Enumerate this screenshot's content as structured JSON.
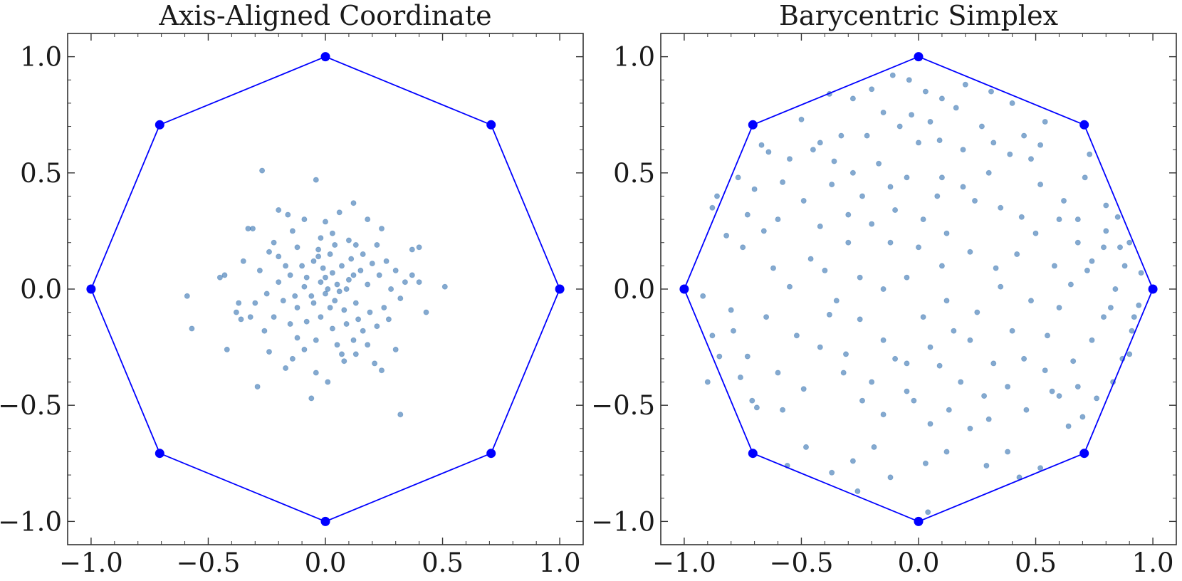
{
  "chart_data": [
    {
      "type": "scatter",
      "title": "Axis-Aligned Coordinate",
      "xlabel": "",
      "ylabel": "",
      "xlim": [
        -1.1,
        1.1
      ],
      "ylim": [
        -1.1,
        1.1
      ],
      "xticks": [
        -1.0,
        -0.5,
        0.0,
        0.5,
        1.0
      ],
      "yticks": [
        -1.0,
        -0.5,
        0.0,
        0.5,
        1.0
      ],
      "xtick_labels": [
        "−1.0",
        "−0.5",
        "0.0",
        "0.5",
        "1.0"
      ],
      "ytick_labels": [
        "−1.0",
        "−0.5",
        "0.0",
        "0.5",
        "1.0"
      ],
      "grid": false,
      "point_color": "#1f63a8",
      "point_opacity": 0.55,
      "polygon": {
        "color": "#0000ff",
        "vertices": [
          [
            1.0,
            0.0
          ],
          [
            0.707,
            0.707
          ],
          [
            0.0,
            1.0
          ],
          [
            -0.707,
            0.707
          ],
          [
            -1.0,
            0.0
          ],
          [
            -0.707,
            -0.707
          ],
          [
            0.0,
            -1.0
          ],
          [
            0.707,
            -0.707
          ]
        ]
      },
      "points": [
        [
          -0.27,
          0.51
        ],
        [
          -0.04,
          0.47
        ],
        [
          0.12,
          0.37
        ],
        [
          -0.2,
          0.34
        ],
        [
          -0.16,
          0.32
        ],
        [
          0.06,
          0.33
        ],
        [
          0.18,
          0.3
        ],
        [
          -0.09,
          0.3
        ],
        [
          0.0,
          0.29
        ],
        [
          -0.31,
          0.26
        ],
        [
          -0.33,
          0.26
        ],
        [
          0.24,
          0.26
        ],
        [
          -0.14,
          0.25
        ],
        [
          0.03,
          0.24
        ],
        [
          -0.02,
          0.22
        ],
        [
          0.1,
          0.21
        ],
        [
          -0.22,
          0.2
        ],
        [
          0.13,
          0.19
        ],
        [
          0.22,
          0.19
        ],
        [
          0.37,
          0.17
        ],
        [
          0.4,
          0.18
        ],
        [
          -0.35,
          0.12
        ],
        [
          -0.43,
          0.06
        ],
        [
          -0.59,
          -0.03
        ],
        [
          -0.45,
          0.05
        ],
        [
          0.37,
          0.06
        ],
        [
          0.51,
          0.01
        ],
        [
          0.4,
          0.03
        ],
        [
          0.34,
          0.03
        ],
        [
          0.43,
          -0.1
        ],
        [
          -0.37,
          -0.06
        ],
        [
          -0.38,
          -0.1
        ],
        [
          -0.36,
          -0.13
        ],
        [
          -0.32,
          -0.12
        ],
        [
          -0.57,
          -0.17
        ],
        [
          -0.42,
          -0.26
        ],
        [
          -0.24,
          -0.27
        ],
        [
          -0.14,
          -0.3
        ],
        [
          0.08,
          -0.31
        ],
        [
          0.13,
          -0.28
        ],
        [
          -0.17,
          -0.34
        ],
        [
          -0.04,
          -0.36
        ],
        [
          0.21,
          -0.32
        ],
        [
          0.24,
          -0.35
        ],
        [
          0.3,
          -0.26
        ],
        [
          -0.29,
          -0.42
        ],
        [
          0.01,
          -0.4
        ],
        [
          -0.06,
          -0.47
        ],
        [
          0.32,
          -0.54
        ],
        [
          -0.1,
          0.1
        ],
        [
          -0.05,
          0.12
        ],
        [
          0.02,
          0.15
        ],
        [
          0.07,
          0.1
        ],
        [
          0.11,
          0.13
        ],
        [
          0.15,
          0.08
        ],
        [
          -0.15,
          0.06
        ],
        [
          -0.2,
          0.03
        ],
        [
          -0.08,
          0.05
        ],
        [
          0.0,
          0.05
        ],
        [
          0.05,
          0.02
        ],
        [
          0.1,
          0.04
        ],
        [
          0.18,
          0.02
        ],
        [
          0.23,
          0.06
        ],
        [
          0.28,
          0.0
        ],
        [
          -0.25,
          -0.02
        ],
        [
          -0.18,
          -0.05
        ],
        [
          -0.12,
          -0.08
        ],
        [
          -0.06,
          -0.03
        ],
        [
          0.0,
          -0.02
        ],
        [
          0.04,
          -0.05
        ],
        [
          0.08,
          -0.09
        ],
        [
          0.13,
          -0.06
        ],
        [
          0.19,
          -0.1
        ],
        [
          0.25,
          -0.08
        ],
        [
          -0.22,
          -0.12
        ],
        [
          -0.15,
          -0.15
        ],
        [
          -0.08,
          -0.14
        ],
        [
          -0.02,
          -0.12
        ],
        [
          0.03,
          -0.17
        ],
        [
          0.09,
          -0.15
        ],
        [
          0.16,
          -0.18
        ],
        [
          0.22,
          -0.16
        ],
        [
          -0.12,
          -0.21
        ],
        [
          -0.04,
          -0.22
        ],
        [
          0.05,
          -0.24
        ],
        [
          0.12,
          -0.22
        ],
        [
          -0.2,
          0.14
        ],
        [
          -0.12,
          0.18
        ],
        [
          -0.03,
          0.17
        ],
        [
          0.04,
          0.19
        ],
        [
          0.16,
          0.15
        ],
        [
          0.26,
          0.12
        ],
        [
          -0.28,
          0.08
        ],
        [
          -0.24,
          0.16
        ],
        [
          0.3,
          0.08
        ],
        [
          0.32,
          -0.04
        ],
        [
          -0.3,
          -0.06
        ],
        [
          0.27,
          -0.13
        ],
        [
          -0.26,
          -0.18
        ],
        [
          0.18,
          -0.24
        ],
        [
          -0.09,
          -0.26
        ],
        [
          0.07,
          -0.28
        ],
        [
          0.01,
          0.0
        ],
        [
          -0.02,
          0.03
        ],
        [
          0.03,
          0.07
        ],
        [
          -0.05,
          -0.06
        ],
        [
          0.06,
          -0.01
        ],
        [
          -0.01,
          0.09
        ],
        [
          0.09,
          0.0
        ],
        [
          -0.09,
          0.01
        ],
        [
          0.02,
          -0.08
        ],
        [
          -0.03,
          0.14
        ],
        [
          0.14,
          -0.13
        ],
        [
          -0.17,
          0.1
        ],
        [
          0.2,
          0.11
        ],
        [
          -0.13,
          -0.03
        ],
        [
          0.12,
          0.06
        ]
      ]
    },
    {
      "type": "scatter",
      "title": "Barycentric Simplex",
      "xlabel": "",
      "ylabel": "",
      "xlim": [
        -1.1,
        1.1
      ],
      "ylim": [
        -1.1,
        1.1
      ],
      "xticks": [
        -1.0,
        -0.5,
        0.0,
        0.5,
        1.0
      ],
      "yticks": [
        -1.0,
        -0.5,
        0.0,
        0.5,
        1.0
      ],
      "xtick_labels": [
        "−1.0",
        "−0.5",
        "0.0",
        "0.5",
        "1.0"
      ],
      "ytick_labels": [
        "−1.0",
        "−0.5",
        "0.0",
        "0.5",
        "1.0"
      ],
      "grid": false,
      "point_color": "#1f63a8",
      "point_opacity": 0.55,
      "polygon": {
        "color": "#0000ff",
        "vertices": [
          [
            1.0,
            0.0
          ],
          [
            0.707,
            0.707
          ],
          [
            0.0,
            1.0
          ],
          [
            -0.707,
            0.707
          ],
          [
            -1.0,
            0.0
          ],
          [
            -0.707,
            -0.707
          ],
          [
            0.0,
            -1.0
          ],
          [
            0.707,
            -0.707
          ]
        ]
      },
      "points": [
        [
          -0.11,
          0.92
        ],
        [
          -0.04,
          0.9
        ],
        [
          0.03,
          0.85
        ],
        [
          0.1,
          0.82
        ],
        [
          0.2,
          0.88
        ],
        [
          0.31,
          0.85
        ],
        [
          0.4,
          0.8
        ],
        [
          -0.2,
          0.86
        ],
        [
          -0.28,
          0.82
        ],
        [
          -0.38,
          0.84
        ],
        [
          -0.5,
          0.73
        ],
        [
          -0.15,
          0.76
        ],
        [
          -0.03,
          0.75
        ],
        [
          0.05,
          0.72
        ],
        [
          0.16,
          0.78
        ],
        [
          0.27,
          0.7
        ],
        [
          0.54,
          0.72
        ],
        [
          0.73,
          0.58
        ],
        [
          0.71,
          0.48
        ],
        [
          0.52,
          0.62
        ],
        [
          0.39,
          0.58
        ],
        [
          -0.64,
          0.59
        ],
        [
          -0.77,
          0.48
        ],
        [
          -0.86,
          0.4
        ],
        [
          -0.88,
          0.35
        ],
        [
          -0.73,
          0.32
        ],
        [
          -0.6,
          0.3
        ],
        [
          -0.42,
          0.63
        ],
        [
          -0.36,
          0.55
        ],
        [
          -0.28,
          0.5
        ],
        [
          -0.17,
          0.54
        ],
        [
          -0.05,
          0.48
        ],
        [
          0.08,
          0.4
        ],
        [
          0.19,
          0.44
        ],
        [
          0.3,
          0.5
        ],
        [
          0.48,
          0.56
        ],
        [
          0.52,
          0.45
        ],
        [
          0.62,
          0.38
        ],
        [
          0.68,
          0.3
        ],
        [
          0.8,
          0.36
        ],
        [
          0.85,
          0.31
        ],
        [
          0.9,
          0.2
        ],
        [
          0.88,
          0.1
        ],
        [
          0.84,
          0.0
        ],
        [
          0.94,
          -0.07
        ],
        [
          0.91,
          -0.18
        ],
        [
          0.87,
          -0.3
        ],
        [
          0.83,
          -0.4
        ],
        [
          0.76,
          -0.47
        ],
        [
          0.7,
          -0.55
        ],
        [
          -0.9,
          -0.4
        ],
        [
          -0.85,
          -0.29
        ],
        [
          -0.79,
          -0.18
        ],
        [
          -0.92,
          -0.03
        ],
        [
          -0.8,
          -0.09
        ],
        [
          -0.73,
          -0.29
        ],
        [
          -0.71,
          -0.48
        ],
        [
          -0.69,
          -0.51
        ],
        [
          -0.58,
          -0.52
        ],
        [
          -0.6,
          -0.36
        ],
        [
          -0.49,
          -0.43
        ],
        [
          -0.52,
          -0.2
        ],
        [
          -0.38,
          -0.11
        ],
        [
          -0.31,
          -0.28
        ],
        [
          -0.24,
          -0.48
        ],
        [
          -0.15,
          -0.54
        ],
        [
          -0.05,
          -0.44
        ],
        [
          0.05,
          -0.58
        ],
        [
          0.13,
          -0.52
        ],
        [
          0.22,
          -0.6
        ],
        [
          0.3,
          -0.56
        ],
        [
          0.38,
          -0.42
        ],
        [
          0.45,
          -0.3
        ],
        [
          0.55,
          -0.2
        ],
        [
          0.6,
          -0.08
        ],
        [
          0.65,
          0.02
        ],
        [
          0.58,
          0.1
        ],
        [
          0.48,
          -0.05
        ],
        [
          0.35,
          0.01
        ],
        [
          0.25,
          -0.1
        ],
        [
          0.15,
          -0.18
        ],
        [
          0.05,
          -0.25
        ],
        [
          -0.05,
          -0.32
        ],
        [
          -0.15,
          -0.22
        ],
        [
          -0.25,
          -0.13
        ],
        [
          -0.35,
          -0.05
        ],
        [
          -0.4,
          0.08
        ],
        [
          -0.3,
          0.2
        ],
        [
          -0.2,
          0.28
        ],
        [
          -0.1,
          0.34
        ],
        [
          0.02,
          0.3
        ],
        [
          0.12,
          0.24
        ],
        [
          0.22,
          0.16
        ],
        [
          0.33,
          0.09
        ],
        [
          0.42,
          0.15
        ],
        [
          0.5,
          0.24
        ],
        [
          0.44,
          0.31
        ],
        [
          -0.48,
          -0.68
        ],
        [
          -0.37,
          -0.79
        ],
        [
          -0.28,
          -0.74
        ],
        [
          -0.19,
          -0.68
        ],
        [
          -0.12,
          -0.81
        ],
        [
          0.03,
          -0.75
        ],
        [
          0.12,
          -0.7
        ],
        [
          0.29,
          -0.76
        ],
        [
          0.38,
          -0.7
        ],
        [
          0.43,
          -0.81
        ],
        [
          0.52,
          -0.77
        ],
        [
          0.04,
          -0.96
        ],
        [
          -0.26,
          -0.87
        ],
        [
          -0.56,
          -0.76
        ],
        [
          0.64,
          -0.59
        ],
        [
          0.57,
          -0.44
        ],
        [
          0.66,
          -0.31
        ],
        [
          0.74,
          -0.22
        ],
        [
          0.79,
          -0.12
        ],
        [
          0.72,
          0.08
        ],
        [
          0.79,
          0.18
        ],
        [
          0.74,
          0.12
        ],
        [
          -0.65,
          -0.12
        ],
        [
          -0.55,
          0.01
        ],
        [
          -0.46,
          0.13
        ],
        [
          -0.62,
          0.09
        ],
        [
          -0.7,
          0.43
        ],
        [
          -0.58,
          0.46
        ],
        [
          -0.49,
          0.38
        ],
        [
          -0.37,
          0.45
        ],
        [
          -0.24,
          0.4
        ],
        [
          -0.12,
          0.44
        ],
        [
          0.1,
          0.48
        ],
        [
          0.24,
          0.38
        ],
        [
          0.35,
          0.35
        ],
        [
          -0.42,
          0.27
        ],
        [
          -0.3,
          0.32
        ],
        [
          -0.12,
          0.2
        ],
        [
          0.0,
          0.18
        ],
        [
          0.1,
          0.1
        ],
        [
          -0.05,
          0.05
        ],
        [
          -0.15,
          0.0
        ],
        [
          -0.25,
          0.05
        ],
        [
          -0.42,
          -0.25
        ],
        [
          -0.32,
          -0.36
        ],
        [
          -0.2,
          -0.4
        ],
        [
          -0.1,
          -0.3
        ],
        [
          0.02,
          -0.12
        ],
        [
          0.12,
          -0.05
        ],
        [
          0.22,
          -0.22
        ],
        [
          0.32,
          -0.32
        ],
        [
          0.4,
          -0.18
        ],
        [
          0.18,
          -0.4
        ],
        [
          0.28,
          -0.46
        ],
        [
          0.09,
          -0.33
        ],
        [
          -0.02,
          -0.48
        ],
        [
          0.46,
          -0.52
        ],
        [
          0.54,
          -0.35
        ],
        [
          0.6,
          -0.46
        ],
        [
          0.68,
          -0.42
        ],
        [
          0.82,
          -0.08
        ],
        [
          0.86,
          0.18
        ],
        [
          0.8,
          0.25
        ],
        [
          0.68,
          0.2
        ],
        [
          0.6,
          0.3
        ],
        [
          -0.67,
          0.62
        ],
        [
          -0.55,
          0.56
        ],
        [
          -0.45,
          0.6
        ],
        [
          -0.33,
          0.66
        ],
        [
          -0.22,
          0.66
        ],
        [
          -0.08,
          0.7
        ],
        [
          0.0,
          0.63
        ],
        [
          0.09,
          0.64
        ],
        [
          0.19,
          0.6
        ],
        [
          0.32,
          0.63
        ],
        [
          0.45,
          0.66
        ],
        [
          -0.75,
          0.18
        ],
        [
          -0.66,
          0.25
        ],
        [
          -0.82,
          0.23
        ],
        [
          -0.88,
          -0.2
        ],
        [
          -0.76,
          -0.38
        ],
        [
          0.9,
          -0.28
        ],
        [
          0.95,
          0.07
        ],
        [
          0.92,
          -0.12
        ]
      ]
    }
  ]
}
